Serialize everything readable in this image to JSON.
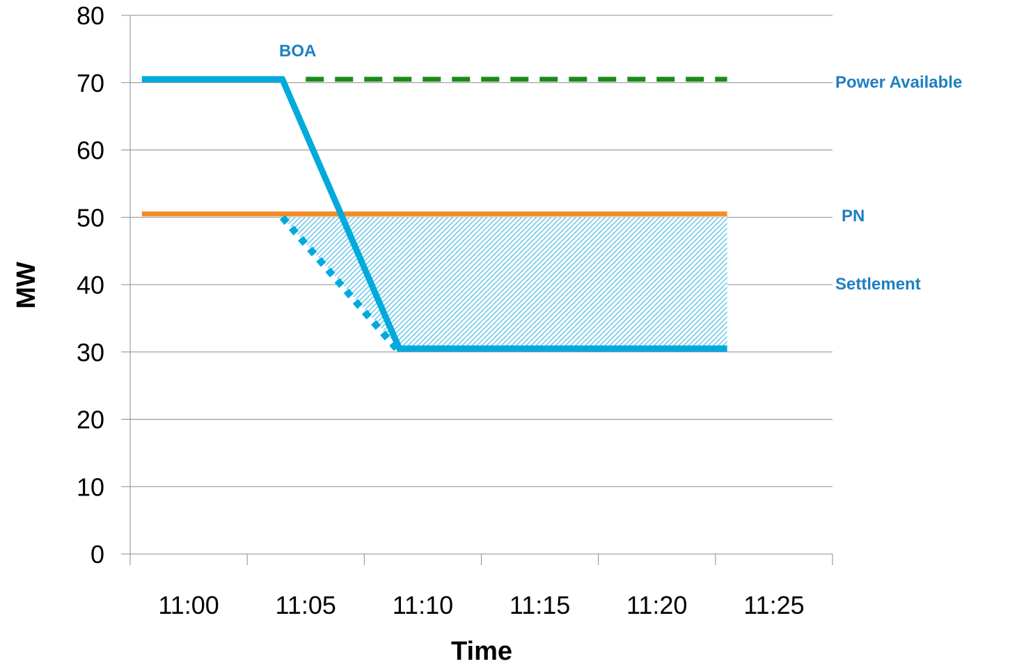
{
  "chart_data": {
    "type": "line",
    "xlabel": "Time",
    "ylabel": "MW",
    "ylim": [
      0,
      80
    ],
    "yticks": [
      "0",
      "10",
      "20",
      "30",
      "40",
      "50",
      "60",
      "70",
      "80"
    ],
    "categories": [
      "11:00",
      "11:05",
      "11:10",
      "11:15",
      "11:20",
      "11:25"
    ],
    "grid": "horizontal",
    "series": [
      {
        "name": "PN",
        "style": "solid",
        "color": "#F28C28",
        "points": [
          [
            "10:58",
            50.5
          ],
          [
            "11:23",
            50.5
          ]
        ]
      },
      {
        "name": "Power Available",
        "style": "dashed",
        "color": "#1A8A1A",
        "points": [
          [
            "11:05",
            70.5
          ],
          [
            "11:23",
            70.5
          ]
        ]
      },
      {
        "name": "BOA",
        "style": "solid",
        "color": "#00AADD",
        "points": [
          [
            "10:58",
            70.5
          ],
          [
            "11:04",
            70.5
          ],
          [
            "11:09",
            30.5
          ],
          [
            "11:23",
            30.5
          ]
        ]
      },
      {
        "name": "Settlement",
        "style": "dotted",
        "color": "#00AADD",
        "points": [
          [
            "11:04",
            50
          ],
          [
            "11:09",
            30
          ]
        ]
      }
    ],
    "shaded_region": {
      "name": "Settlement",
      "polygon": [
        [
          "11:04",
          50
        ],
        [
          "11:23",
          50
        ],
        [
          "11:23",
          30.5
        ],
        [
          "11:09",
          30.5
        ]
      ]
    },
    "annotations": [
      {
        "text": "BOA",
        "color": "#1E7FC2"
      },
      {
        "text": "Power Available",
        "color": "#1E7FC2"
      },
      {
        "text": "PN",
        "color": "#1E7FC2"
      },
      {
        "text": "Settlement",
        "color": "#1E7FC2"
      }
    ],
    "colors": {
      "gridline": "#8C8C8C",
      "axis": "#8C8C8C",
      "hatch": "#33B5E5"
    }
  }
}
